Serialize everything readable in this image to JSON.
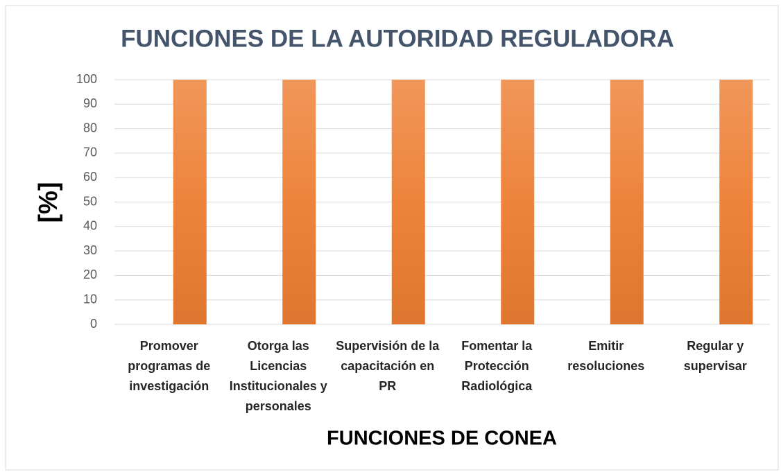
{
  "chart_data": {
    "type": "bar",
    "title": "FUNCIONES DE LA AUTORIDAD REGULADORA",
    "x_label": "FUNCIONES DE CONEA",
    "y_label": "[%]",
    "categories": [
      "Promover programas de investigación",
      "Otorga las Licencias Institucionales y personales",
      "Supervisión de la capacitación en PR",
      "Fomentar la Protección Radiológica",
      "Emitir resoluciones",
      "Regular y supervisar"
    ],
    "values": [
      100,
      100,
      100,
      100,
      100,
      100
    ],
    "color": "#ed7d31",
    "ylim": [
      0,
      100
    ],
    "yticks": [
      0,
      10,
      20,
      30,
      40,
      50,
      60,
      70,
      80,
      90,
      100
    ],
    "grid": true
  }
}
